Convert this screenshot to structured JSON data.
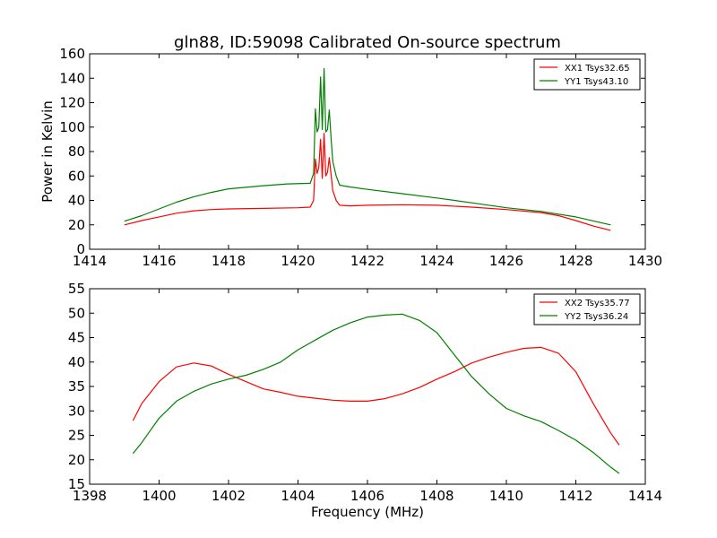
{
  "title": "gln88, ID:59098 Calibrated On-source spectrum",
  "chart_data": [
    {
      "type": "line",
      "title": "gln88, ID:59098 Calibrated On-source spectrum",
      "xlabel": "",
      "ylabel": "Power in Kelvin",
      "xlim": [
        1414,
        1430
      ],
      "ylim": [
        0,
        160
      ],
      "xticks": [
        "1414",
        "1416",
        "1418",
        "1420",
        "1422",
        "1424",
        "1426",
        "1428",
        "1430"
      ],
      "yticks": [
        "0",
        "20",
        "40",
        "60",
        "80",
        "100",
        "120",
        "140",
        "160"
      ],
      "grid": false,
      "legend_position": "top-right",
      "series": [
        {
          "name": "XX1 Tsys32.65",
          "color": "#ff0000",
          "points": [
            [
              1415.0,
              20.0
            ],
            [
              1415.5,
              23.5
            ],
            [
              1416.0,
              26.5
            ],
            [
              1416.5,
              29.5
            ],
            [
              1417.0,
              31.5
            ],
            [
              1417.5,
              32.5
            ],
            [
              1418.0,
              33.0
            ],
            [
              1419.0,
              33.5
            ],
            [
              1420.0,
              34.0
            ],
            [
              1420.35,
              34.5
            ],
            [
              1420.45,
              40.0
            ],
            [
              1420.5,
              74.0
            ],
            [
              1420.55,
              62.0
            ],
            [
              1420.6,
              67.0
            ],
            [
              1420.65,
              90.0
            ],
            [
              1420.7,
              58.0
            ],
            [
              1420.75,
              95.0
            ],
            [
              1420.8,
              60.0
            ],
            [
              1420.85,
              63.0
            ],
            [
              1420.9,
              75.0
            ],
            [
              1420.95,
              62.0
            ],
            [
              1421.0,
              48.0
            ],
            [
              1421.1,
              40.0
            ],
            [
              1421.2,
              36.0
            ],
            [
              1421.5,
              35.5
            ],
            [
              1422.0,
              36.0
            ],
            [
              1423.0,
              36.5
            ],
            [
              1424.0,
              36.0
            ],
            [
              1425.0,
              34.5
            ],
            [
              1426.0,
              32.5
            ],
            [
              1427.0,
              30.0
            ],
            [
              1427.5,
              27.5
            ],
            [
              1428.0,
              23.5
            ],
            [
              1428.5,
              19.0
            ],
            [
              1429.0,
              15.5
            ]
          ]
        },
        {
          "name": "YY1 Tsys43.10",
          "color": "#008000",
          "points": [
            [
              1415.0,
              23.0
            ],
            [
              1415.5,
              27.5
            ],
            [
              1416.0,
              33.0
            ],
            [
              1416.5,
              38.5
            ],
            [
              1417.0,
              43.0
            ],
            [
              1417.5,
              46.5
            ],
            [
              1418.0,
              49.5
            ],
            [
              1419.0,
              52.0
            ],
            [
              1419.7,
              53.5
            ],
            [
              1420.35,
              54.0
            ],
            [
              1420.45,
              62.0
            ],
            [
              1420.5,
              115.0
            ],
            [
              1420.55,
              96.0
            ],
            [
              1420.6,
              100.0
            ],
            [
              1420.65,
              141.0
            ],
            [
              1420.7,
              98.0
            ],
            [
              1420.75,
              148.0
            ],
            [
              1420.8,
              96.0
            ],
            [
              1420.85,
              98.0
            ],
            [
              1420.9,
              114.0
            ],
            [
              1420.95,
              92.0
            ],
            [
              1421.0,
              72.0
            ],
            [
              1421.1,
              60.0
            ],
            [
              1421.2,
              52.5
            ],
            [
              1421.5,
              51.0
            ],
            [
              1422.0,
              49.0
            ],
            [
              1423.0,
              45.5
            ],
            [
              1424.0,
              42.0
            ],
            [
              1425.0,
              38.0
            ],
            [
              1426.0,
              34.0
            ],
            [
              1427.0,
              31.0
            ],
            [
              1428.0,
              26.5
            ],
            [
              1429.0,
              20.0
            ]
          ]
        }
      ]
    },
    {
      "type": "line",
      "title": "",
      "xlabel": "Frequency (MHz)",
      "ylabel": "",
      "xlim": [
        1398,
        1414
      ],
      "ylim": [
        15,
        55
      ],
      "xticks": [
        "1398",
        "1400",
        "1402",
        "1404",
        "1406",
        "1408",
        "1410",
        "1412",
        "1414"
      ],
      "yticks": [
        "15",
        "20",
        "25",
        "30",
        "35",
        "40",
        "45",
        "50",
        "55"
      ],
      "grid": false,
      "legend_position": "top-right",
      "series": [
        {
          "name": "XX2 Tsys35.77",
          "color": "#ff0000",
          "points": [
            [
              1399.25,
              28.0
            ],
            [
              1399.5,
              31.5
            ],
            [
              1400.0,
              36.0
            ],
            [
              1400.5,
              39.0
            ],
            [
              1401.0,
              39.8
            ],
            [
              1401.5,
              39.2
            ],
            [
              1402.0,
              37.5
            ],
            [
              1402.5,
              36.0
            ],
            [
              1403.0,
              34.5
            ],
            [
              1403.5,
              33.8
            ],
            [
              1404.0,
              33.0
            ],
            [
              1404.5,
              32.6
            ],
            [
              1405.0,
              32.2
            ],
            [
              1405.5,
              32.0
            ],
            [
              1406.0,
              32.0
            ],
            [
              1406.5,
              32.5
            ],
            [
              1407.0,
              33.5
            ],
            [
              1407.5,
              34.8
            ],
            [
              1408.0,
              36.5
            ],
            [
              1408.5,
              38.0
            ],
            [
              1409.0,
              39.8
            ],
            [
              1409.5,
              41.0
            ],
            [
              1410.0,
              42.0
            ],
            [
              1410.5,
              42.8
            ],
            [
              1411.0,
              43.0
            ],
            [
              1411.5,
              41.8
            ],
            [
              1412.0,
              38.0
            ],
            [
              1412.5,
              31.5
            ],
            [
              1413.0,
              25.5
            ],
            [
              1413.25,
              23.0
            ]
          ]
        },
        {
          "name": "YY2 Tsys36.24",
          "color": "#008000",
          "points": [
            [
              1399.25,
              21.3
            ],
            [
              1399.5,
              23.5
            ],
            [
              1400.0,
              28.5
            ],
            [
              1400.5,
              32.0
            ],
            [
              1401.0,
              34.0
            ],
            [
              1401.5,
              35.5
            ],
            [
              1402.0,
              36.5
            ],
            [
              1402.5,
              37.3
            ],
            [
              1403.0,
              38.5
            ],
            [
              1403.5,
              40.0
            ],
            [
              1404.0,
              42.5
            ],
            [
              1404.5,
              44.5
            ],
            [
              1405.0,
              46.5
            ],
            [
              1405.5,
              48.0
            ],
            [
              1406.0,
              49.2
            ],
            [
              1406.5,
              49.6
            ],
            [
              1407.0,
              49.8
            ],
            [
              1407.5,
              48.5
            ],
            [
              1408.0,
              46.0
            ],
            [
              1408.5,
              41.5
            ],
            [
              1409.0,
              37.0
            ],
            [
              1409.5,
              33.5
            ],
            [
              1410.0,
              30.5
            ],
            [
              1410.5,
              29.0
            ],
            [
              1411.0,
              27.8
            ],
            [
              1411.5,
              26.0
            ],
            [
              1412.0,
              24.0
            ],
            [
              1412.5,
              21.5
            ],
            [
              1413.0,
              18.5
            ],
            [
              1413.25,
              17.2
            ]
          ]
        }
      ]
    }
  ]
}
